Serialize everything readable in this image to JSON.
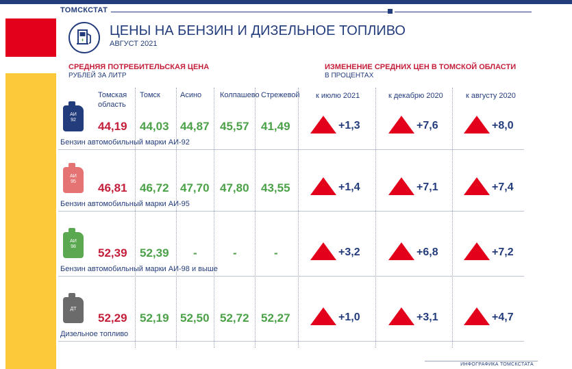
{
  "header": {
    "org": "ТОМСКСТАТ",
    "title": "ЦЕНЫ НА БЕНЗИН И ДИЗЕЛЬНОЕ ТОПЛИВО",
    "subtitle": "АВГУСТ 2021"
  },
  "left_section": {
    "title": "СРЕДНЯЯ ПОТРЕБИТЕЛЬСКАЯ ЦЕНА",
    "unit": "РУБЛЕЙ ЗА ЛИТР",
    "columns": [
      "Томская область",
      "Томск",
      "Асино",
      "Колпашево",
      "Стрежевой"
    ],
    "column_lines": [
      [
        "Томская",
        "область"
      ],
      [
        "Томск"
      ],
      [
        "Асино"
      ],
      [
        "Колпашево"
      ],
      [
        "Стрежевой"
      ]
    ]
  },
  "right_section": {
    "title": "ИЗМЕНЕНИЕ СРЕДНИХ ЦЕН В ТОМСКОЙ ОБЛАСТИ",
    "unit": "В ПРОЦЕНТАХ",
    "columns": [
      "к июлю 2021",
      "к декабрю 2020",
      "к августу 2020"
    ]
  },
  "fuels": [
    {
      "can_label": "АИ 92",
      "can_lines": [
        "АИ",
        "92"
      ],
      "can_color": "#233c7c",
      "name": "Бензин автомобильный марки АИ-92",
      "prices": [
        "44,19",
        "44,03",
        "44,87",
        "45,57",
        "41,49"
      ],
      "changes": [
        "+1,3",
        "+7,6",
        "+8,0"
      ]
    },
    {
      "can_label": "АИ 95",
      "can_lines": [
        "АИ",
        "95"
      ],
      "can_color": "#e57373",
      "name": "Бензин автомобильный марки АИ-95",
      "prices": [
        "46,81",
        "46,72",
        "47,70",
        "47,80",
        "43,55"
      ],
      "changes": [
        "+1,4",
        "+7,1",
        "+7,4"
      ]
    },
    {
      "can_label": "АИ 98",
      "can_lines": [
        "АИ",
        "98"
      ],
      "can_color": "#5aa850",
      "name": "Бензин автомобильный марки АИ-98 и выше",
      "prices": [
        "52,39",
        "52,39",
        "-",
        "-",
        "-"
      ],
      "changes": [
        "+3,2",
        "+6,8",
        "+7,2"
      ]
    },
    {
      "can_label": "ДТ",
      "can_lines": [
        "ДТ"
      ],
      "can_color": "#6b6b6b",
      "name": "Дизельное топливо",
      "prices": [
        "52,29",
        "52,19",
        "52,50",
        "52,72",
        "52,27"
      ],
      "changes": [
        "+1,0",
        "+3,1",
        "+4,7"
      ]
    }
  ],
  "colors": {
    "accent_red": "#c41e3a",
    "accent_green": "#4ba147",
    "brand_blue": "#233c7c",
    "triangle": "#e3001b",
    "yellow": "#fcc93a"
  },
  "footer": "ИНФОГРАФИКА ТОМСКСТАТА"
}
